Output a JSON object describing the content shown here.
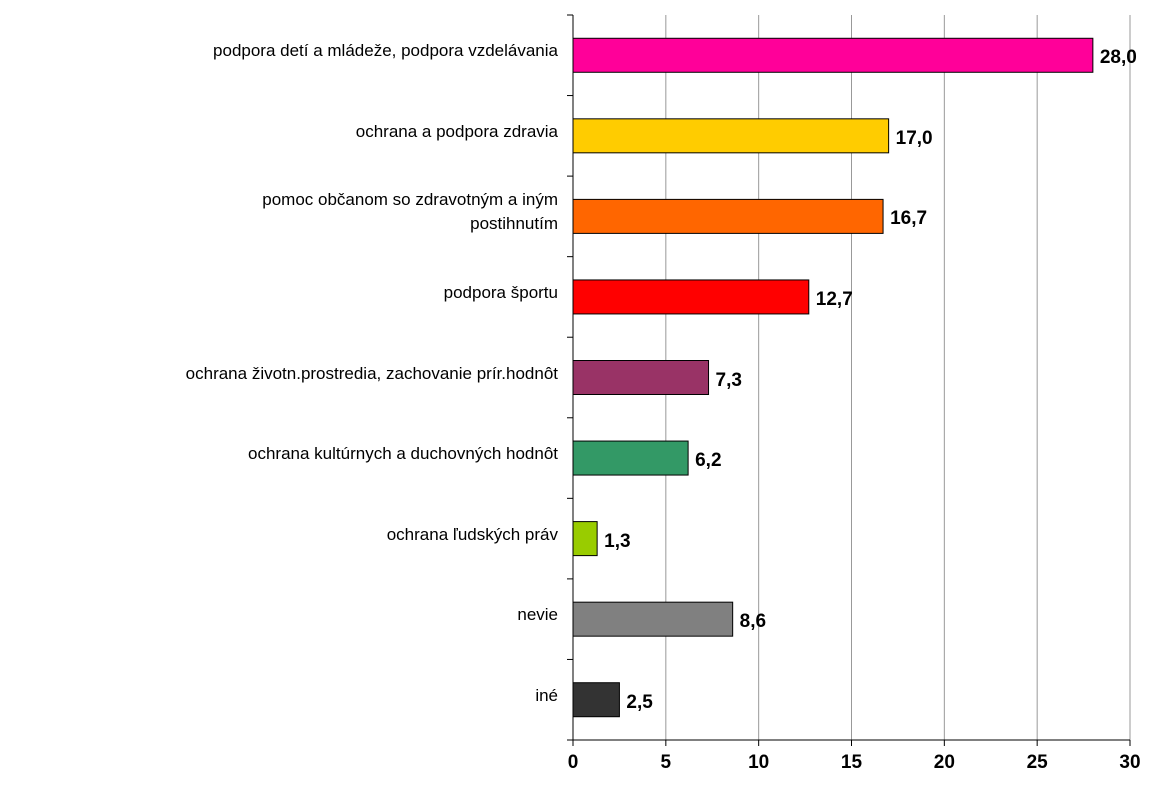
{
  "chart_data": {
    "type": "hbar",
    "categories": [
      "podpora detí a mládeže, podpora vzdelávania",
      "ochrana a podpora zdravia",
      "pomoc občanom so zdravotným a iným\npostihnutím",
      "podpora športu",
      "ochrana životn.prostredia, zachovanie prír.hodnôt",
      "ochrana kultúrnych a duchovných hodnôt",
      "ochrana ľudských práv",
      "nevie",
      "iné"
    ],
    "values": [
      28.0,
      17.0,
      16.7,
      12.7,
      7.3,
      6.2,
      1.3,
      8.6,
      2.5
    ],
    "value_labels": [
      "28,0",
      "17,0",
      "16,7",
      "12,7",
      "7,3",
      "6,2",
      "1,3",
      "8,6",
      "2,5"
    ],
    "colors": [
      "#ff0099",
      "#ffcc00",
      "#ff6600",
      "#ff0000",
      "#993366",
      "#339966",
      "#99cc00",
      "#808080",
      "#333333"
    ],
    "xlim": [
      0,
      30
    ],
    "xticks": [
      0,
      5,
      10,
      15,
      20,
      25,
      30
    ],
    "grid": true
  }
}
